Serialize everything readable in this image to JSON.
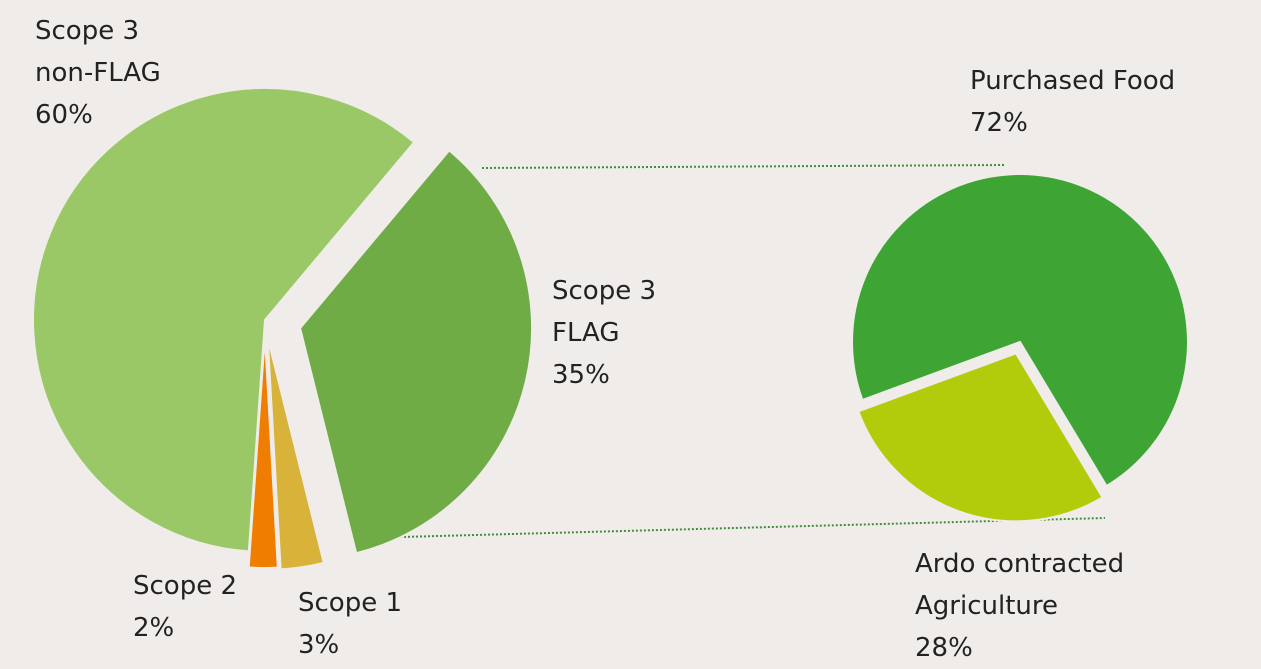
{
  "chart_data": [
    {
      "type": "pie",
      "categories": [
        "Scope 3 FLAG",
        "Scope 1",
        "Scope 2",
        "Scope 3 non-FLAG"
      ],
      "values": [
        35,
        3,
        2,
        60
      ],
      "value_labels": [
        "35%",
        "3%",
        "2%",
        "60%"
      ],
      "colors": [
        "#6fac45",
        "#d9b23a",
        "#ef7d00",
        "#9bc867"
      ]
    },
    {
      "type": "pie",
      "categories": [
        "Ardo contracted Agriculture",
        "Purchased Food"
      ],
      "values": [
        28,
        72
      ],
      "value_labels": [
        "28%",
        "72%"
      ],
      "colors": [
        "#b2cc0b",
        "#3ea535"
      ]
    }
  ]
}
